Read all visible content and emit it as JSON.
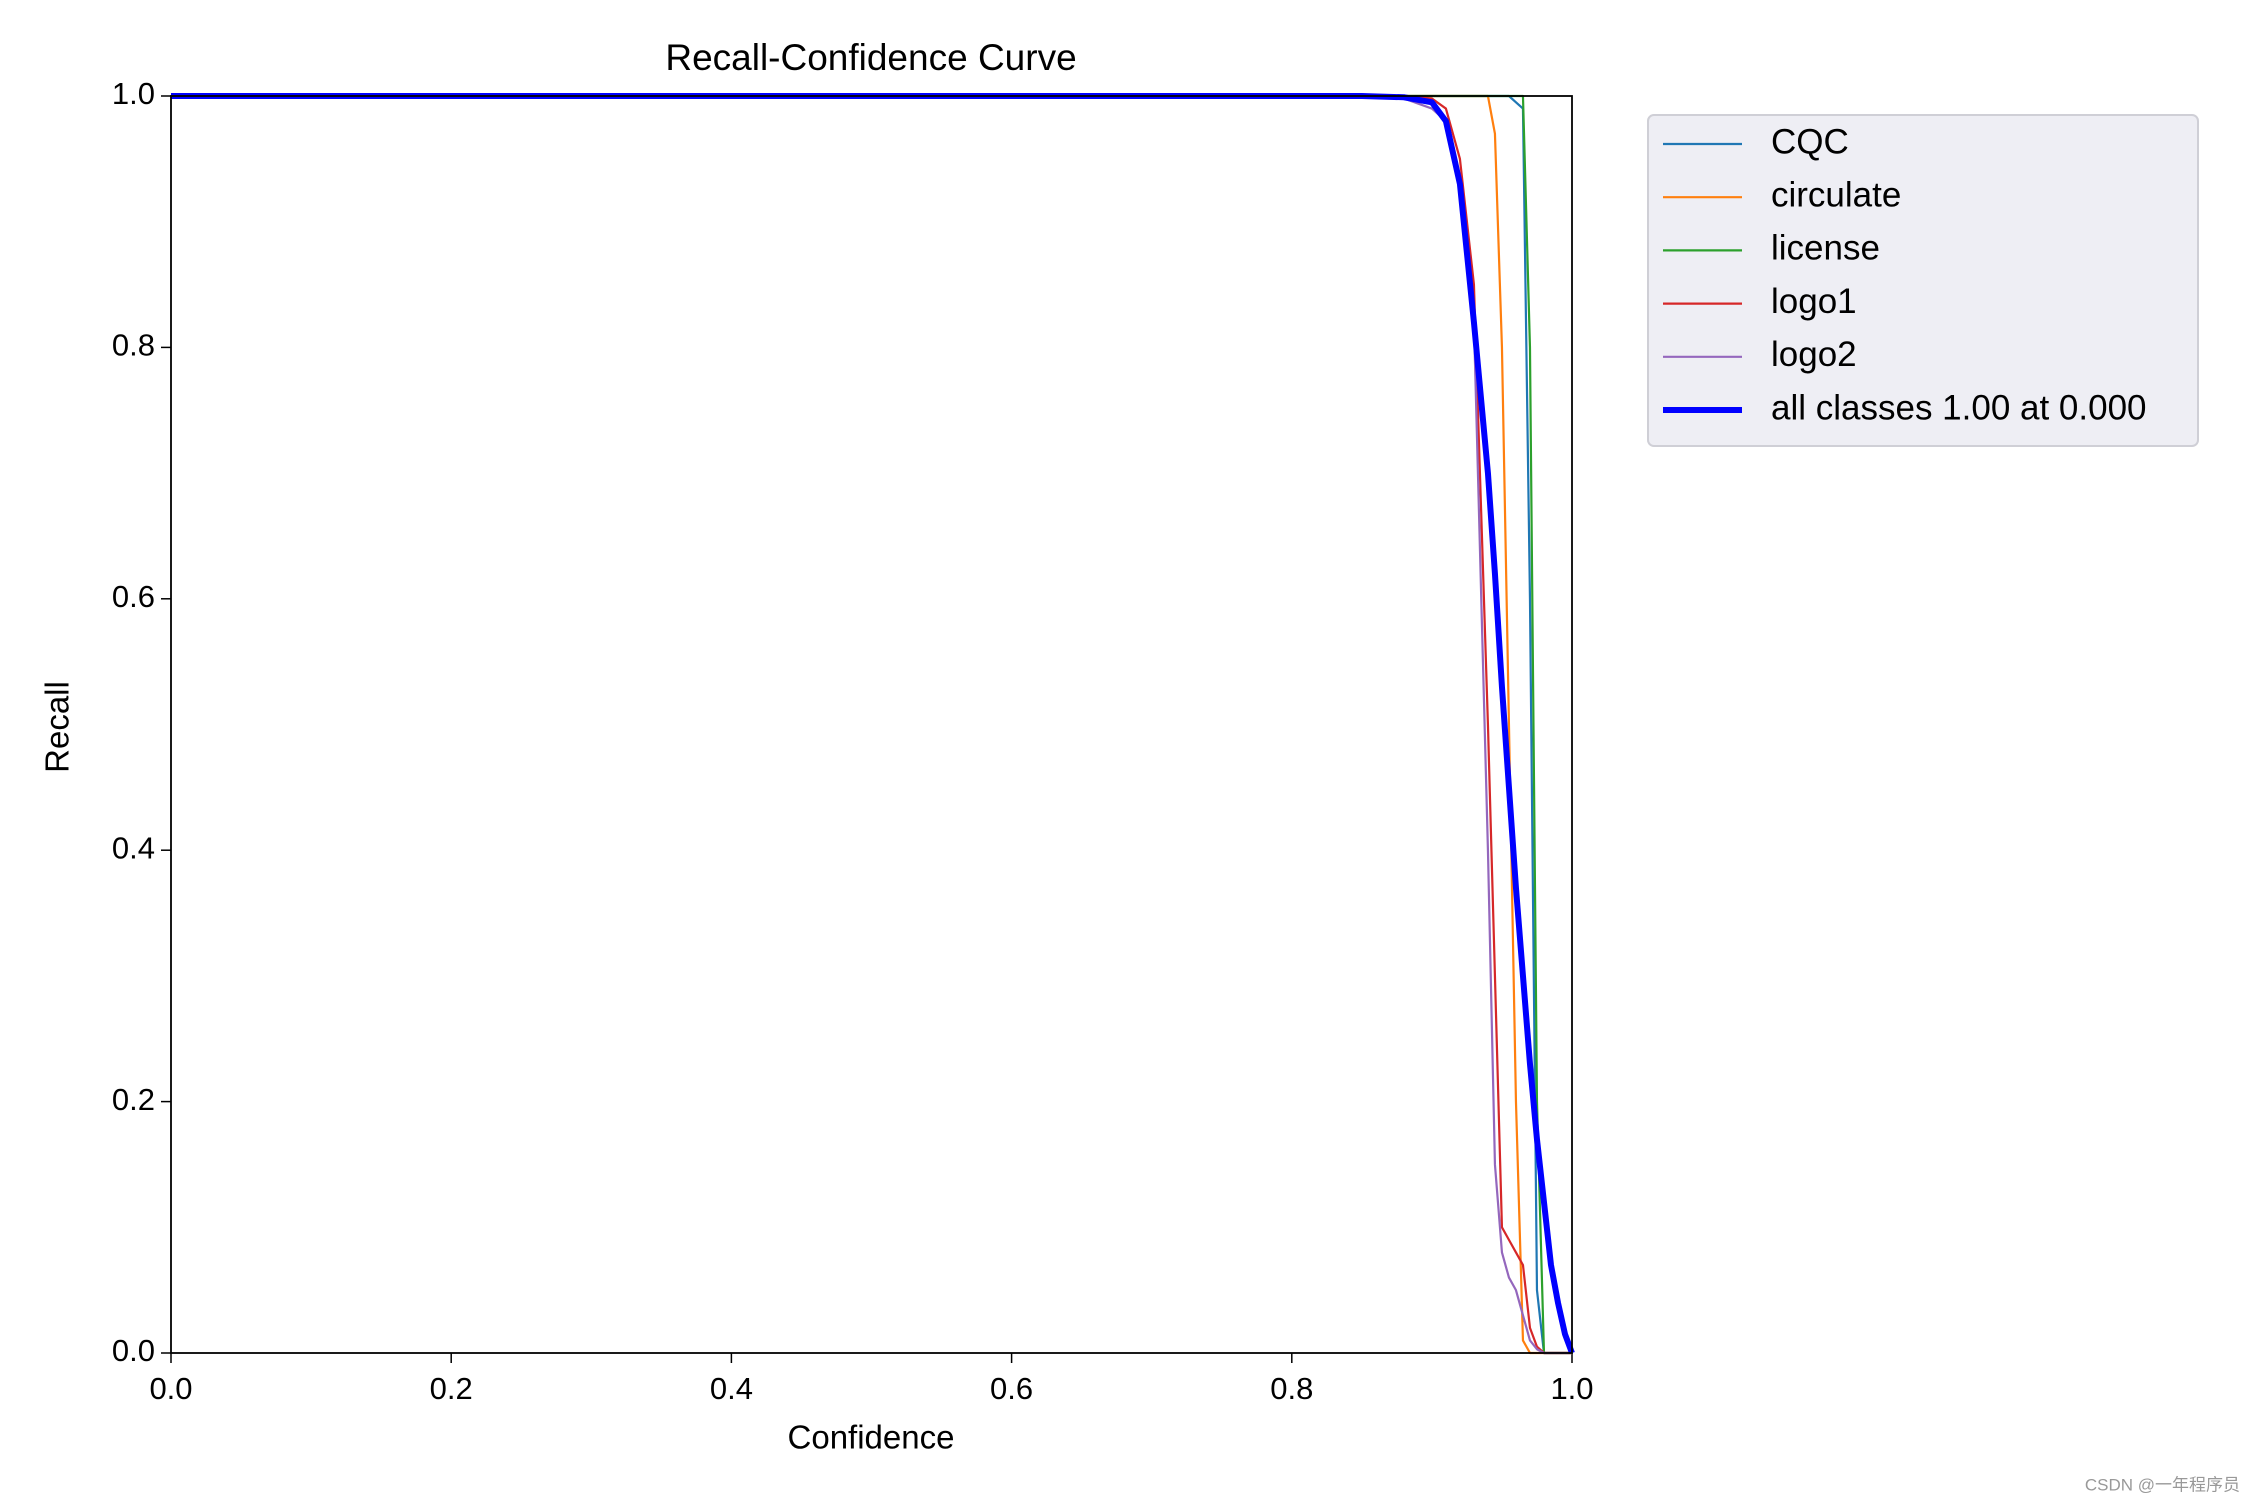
{
  "chart_data": {
    "type": "line",
    "title": "Recall-Confidence Curve",
    "x_label": "Confidence",
    "y_label": "Recall",
    "x": [
      0,
      0.85,
      0.88,
      0.9,
      0.91,
      0.92,
      0.93,
      0.94,
      0.945,
      0.95,
      0.955,
      0.96,
      0.965,
      0.97,
      0.975,
      0.98,
      0.985,
      0.99,
      0.995,
      1.0
    ],
    "series": [
      {
        "name": "CQC",
        "color": "#1f77b4",
        "values": [
          1,
          1,
          1,
          1,
          1,
          1,
          1,
          1,
          1,
          1,
          1,
          0.995,
          0.99,
          0.6,
          0.05,
          0,
          0,
          0,
          0,
          0
        ]
      },
      {
        "name": "circulate",
        "color": "#ff7f0e",
        "values": [
          1,
          1,
          1,
          1,
          1,
          1,
          1,
          1,
          0.97,
          0.8,
          0.5,
          0.2,
          0.01,
          0,
          0,
          0,
          0,
          0,
          0,
          0
        ]
      },
      {
        "name": "license",
        "color": "#2ca02c",
        "values": [
          1,
          1,
          1,
          1,
          1,
          1,
          1,
          1,
          1,
          1,
          1,
          1,
          1,
          0.8,
          0.2,
          0,
          0,
          0,
          0,
          0
        ]
      },
      {
        "name": "logo1",
        "color": "#d62728",
        "values": [
          1,
          1,
          1,
          0.998,
          0.99,
          0.95,
          0.85,
          0.5,
          0.3,
          0.1,
          0.09,
          0.08,
          0.07,
          0.02,
          0.005,
          0,
          0,
          0,
          0,
          0
        ]
      },
      {
        "name": "logo2",
        "color": "#9467bd",
        "values": [
          1,
          1,
          0.998,
          0.99,
          0.98,
          0.93,
          0.82,
          0.4,
          0.15,
          0.08,
          0.06,
          0.05,
          0.03,
          0.01,
          0.003,
          0,
          0,
          0,
          0,
          0
        ]
      },
      {
        "name": "all classes 1.00 at 0.000",
        "color": "#0000ff",
        "values": [
          1,
          1,
          0.999,
          0.995,
          0.98,
          0.93,
          0.82,
          0.7,
          0.62,
          0.53,
          0.45,
          0.37,
          0.3,
          0.23,
          0.17,
          0.12,
          0.07,
          0.04,
          0.015,
          0
        ]
      }
    ],
    "xlim": [
      0,
      1
    ],
    "ylim": [
      0,
      1
    ],
    "xticks": [
      {
        "value": 0,
        "label": "0.0"
      },
      0.2,
      0.4,
      0.6,
      0.8,
      {
        "value": 1,
        "label": "1.0"
      }
    ],
    "yticks": [
      {
        "value": 0,
        "label": "0.0"
      },
      0.2,
      0.4,
      0.6,
      0.8,
      {
        "value": 1,
        "label": "1.0"
      }
    ],
    "grid": false,
    "legend": "outside-upper-right",
    "watermark": "CSDN @一年程序员"
  }
}
